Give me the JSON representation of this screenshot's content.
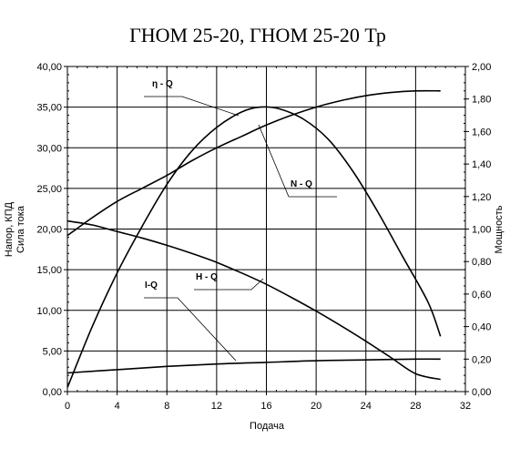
{
  "chart_data": {
    "type": "line",
    "title": "ГНОМ 25-20, ГНОМ 25-20 Тр",
    "xlabel": "Подача",
    "ylabel_left": [
      "Напор, КПД",
      "Сила тока"
    ],
    "ylabel_right": "Мощность",
    "xlim": [
      0,
      32
    ],
    "ylim_left": [
      0,
      40
    ],
    "ylim_right": [
      0,
      2
    ],
    "x_ticks": [
      "0",
      "4",
      "8",
      "12",
      "16",
      "20",
      "24",
      "28",
      "32"
    ],
    "y_left_ticks": [
      "0,00",
      "5,00",
      "10,00",
      "15,00",
      "20,00",
      "25,00",
      "30,00",
      "35,00",
      "40,00"
    ],
    "y_right_ticks": [
      "0,00",
      "0,20",
      "0,40",
      "0,60",
      "0,80",
      "1,00",
      "1,20",
      "1,40",
      "1,60",
      "1,80",
      "2,00"
    ],
    "grid": true,
    "series": [
      {
        "name": "H - Q",
        "axis": "left",
        "label_at": [
          10.5,
          14.2
        ],
        "x": [
          0,
          2,
          4,
          6,
          8,
          10,
          12,
          14,
          16,
          18,
          20,
          22,
          24,
          26,
          28,
          30
        ],
        "y": [
          21.0,
          20.5,
          19.7,
          18.9,
          18.0,
          17.0,
          15.9,
          14.6,
          13.2,
          11.6,
          9.9,
          8.1,
          6.2,
          4.2,
          2.2,
          1.5
        ]
      },
      {
        "name": "η - Q",
        "axis": "left",
        "label_at": [
          8.6,
          35.5
        ],
        "x": [
          0,
          2,
          4,
          6,
          8,
          10,
          12,
          14,
          15.5,
          17,
          19,
          21,
          23,
          25,
          27,
          29,
          30
        ],
        "y": [
          0.5,
          8.0,
          14.6,
          20.3,
          25.5,
          29.6,
          32.5,
          34.4,
          35.0,
          34.8,
          33.5,
          31.0,
          27.0,
          22.0,
          16.5,
          11.0,
          6.8
        ]
      },
      {
        "name": "N - Q",
        "axis": "right",
        "label_at": [
          20.0,
          1.17
        ],
        "x": [
          0,
          2,
          4,
          6,
          8,
          10,
          12,
          14,
          16,
          18,
          20,
          22,
          24,
          26,
          28,
          30
        ],
        "y": [
          0.96,
          1.07,
          1.17,
          1.25,
          1.33,
          1.42,
          1.5,
          1.57,
          1.64,
          1.7,
          1.75,
          1.79,
          1.82,
          1.84,
          1.85,
          1.85
        ]
      },
      {
        "name": "I-Q",
        "axis": "left",
        "label_at": [
          4.6,
          11.5
        ],
        "x": [
          0,
          4,
          8,
          12,
          16,
          20,
          24,
          28,
          30
        ],
        "y": [
          2.3,
          2.7,
          3.1,
          3.4,
          3.6,
          3.8,
          3.9,
          4.0,
          4.0
        ]
      }
    ]
  }
}
